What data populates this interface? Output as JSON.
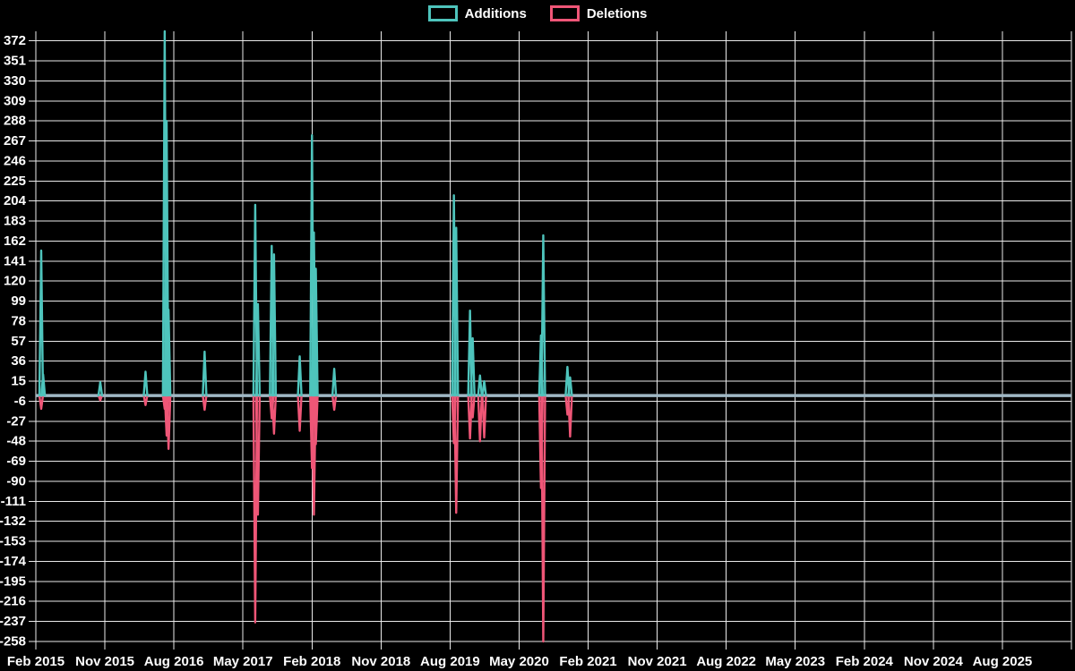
{
  "legend": {
    "additions_label": "Additions",
    "deletions_label": "Deletions"
  },
  "chart_data": {
    "type": "line",
    "title": "",
    "xlabel": "",
    "ylabel": "",
    "background_color": "#000000",
    "grid_color": "#eaeaea",
    "text_color": "#ffffff",
    "zero_line_color": "#9fb7c4",
    "legend_position": "top-center",
    "grid": "on",
    "x_axis": {
      "labels": [
        "Feb 2015",
        "Nov 2015",
        "Aug 2016",
        "May 2017",
        "Feb 2018",
        "Nov 2018",
        "Aug 2019",
        "May 2020",
        "Feb 2021",
        "Nov 2021",
        "Aug 2022",
        "May 2023",
        "Feb 2024",
        "Nov 2024",
        "Aug 2025"
      ],
      "months_per_gridline": 9,
      "total_months_shown": 135
    },
    "y_axis": {
      "min": -258,
      "max": 382,
      "tick_step": 21,
      "ticks": [
        372,
        351,
        330,
        309,
        288,
        267,
        246,
        225,
        204,
        183,
        162,
        141,
        120,
        99,
        78,
        57,
        36,
        15,
        -6,
        -27,
        -48,
        -69,
        -90,
        -111,
        -132,
        -153,
        -174,
        -195,
        -216,
        -237,
        -258
      ]
    },
    "series": [
      {
        "name": "Additions",
        "color": "#4ec4bc",
        "direction": "positive"
      },
      {
        "name": "Deletions",
        "color": "#ef5677",
        "direction": "negative"
      }
    ],
    "points": [
      {
        "m": 0.7,
        "week": "Feb 2015",
        "additions": 152,
        "deletions": -14
      },
      {
        "m": 0.95,
        "week": "Mar 2015",
        "additions": 22,
        "deletions": 0
      },
      {
        "m": 8.4,
        "week": "Oct 2015",
        "additions": 14,
        "deletions": -5
      },
      {
        "m": 14.3,
        "week": "Apr 2016",
        "additions": 25,
        "deletions": -10
      },
      {
        "m": 16.8,
        "week": "Jul 2016",
        "additions": 382,
        "deletions": -14
      },
      {
        "m": 17.05,
        "week": "Jul 2016",
        "additions": 288,
        "deletions": -42
      },
      {
        "m": 17.3,
        "week": "Jul 2016",
        "additions": 90,
        "deletions": -56
      },
      {
        "m": 22.0,
        "week": "Dec 2016",
        "additions": 46,
        "deletions": -15
      },
      {
        "m": 28.6,
        "week": "Jun 2017",
        "additions": 200,
        "deletions": -238
      },
      {
        "m": 28.95,
        "week": "Jul 2017",
        "additions": 96,
        "deletions": -125
      },
      {
        "m": 30.75,
        "week": "Aug 2017",
        "additions": 157,
        "deletions": -24
      },
      {
        "m": 31.05,
        "week": "Sep 2017",
        "additions": 148,
        "deletions": -40
      },
      {
        "m": 34.4,
        "week": "Dec 2017",
        "additions": 41,
        "deletions": -37
      },
      {
        "m": 36.0,
        "week": "Feb 2018",
        "additions": 273,
        "deletions": -76
      },
      {
        "m": 36.25,
        "week": "Feb 2018",
        "additions": 171,
        "deletions": -125
      },
      {
        "m": 36.5,
        "week": "Feb 2018",
        "additions": 133,
        "deletions": -51
      },
      {
        "m": 38.9,
        "week": "Apr 2018",
        "additions": 28,
        "deletions": -15
      },
      {
        "m": 54.5,
        "week": "Aug 2019",
        "additions": 210,
        "deletions": -50
      },
      {
        "m": 54.8,
        "week": "Sep 2019",
        "additions": 176,
        "deletions": -123
      },
      {
        "m": 56.6,
        "week": "Oct 2019",
        "additions": 89,
        "deletions": -45
      },
      {
        "m": 56.95,
        "week": "Nov 2019",
        "additions": 60,
        "deletions": -23
      },
      {
        "m": 57.9,
        "week": "Nov 2019",
        "additions": 21,
        "deletions": -48
      },
      {
        "m": 58.45,
        "week": "Dec 2019",
        "additions": 15,
        "deletions": -44
      },
      {
        "m": 65.85,
        "week": "Jul 2020",
        "additions": 63,
        "deletions": -97
      },
      {
        "m": 66.15,
        "week": "Aug 2020",
        "additions": 168,
        "deletions": -258
      },
      {
        "m": 69.3,
        "week": "Nov 2020",
        "additions": 30,
        "deletions": -20
      },
      {
        "m": 69.65,
        "week": "Nov 2020",
        "additions": 19,
        "deletions": -43
      }
    ]
  }
}
